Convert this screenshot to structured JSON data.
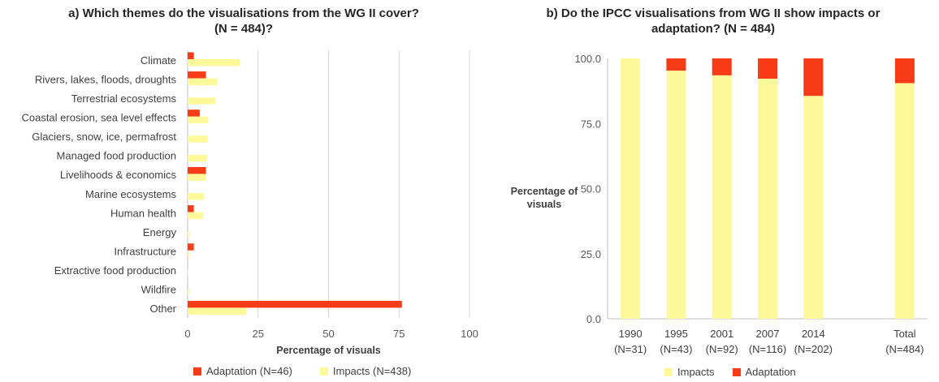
{
  "colors": {
    "adaptation": "#f73b16",
    "impacts": "#fdf99a",
    "grid": "#d9d9d9",
    "axis": "#bfbfbf"
  },
  "chart_data": [
    {
      "type": "bar",
      "orientation": "horizontal",
      "title_line1": "a) Which themes do the visualisations from the WG II cover?",
      "title_line2": "(N = 484)?",
      "xlabel": "Percentage of visuals",
      "ylabel": "",
      "xlim": [
        0,
        100
      ],
      "xticks": [
        "0",
        "25",
        "50",
        "75",
        "100"
      ],
      "grid": true,
      "legend_position": "bottom",
      "categories": [
        "Climate",
        "Rivers, lakes, floods, droughts",
        "Terrestrial ecosystems",
        "Coastal erosion, sea level effects",
        "Glaciers, snow, ice, permafrost",
        "Managed food production",
        "Livelihoods & economics",
        "Marine ecosystems",
        "Human health",
        "Energy",
        "Infrastructure",
        "Extractive food production",
        "Wildfire",
        "Other"
      ],
      "series": [
        {
          "name": "Adaptation (N=46)",
          "values": [
            2.2,
            6.5,
            0,
            4.3,
            0,
            0,
            6.5,
            0,
            2.2,
            0,
            2.2,
            0,
            0,
            76
          ]
        },
        {
          "name": "Impacts (N=438)",
          "values": [
            18.5,
            10.5,
            9.8,
            7.3,
            7.1,
            6.8,
            6.6,
            5.7,
            5.5,
            0.5,
            0.5,
            0.2,
            0.5,
            20.8
          ]
        }
      ]
    },
    {
      "type": "bar",
      "stacked": true,
      "title_line1": "b) Do the IPCC visualisations from WG II show impacts or",
      "title_line2": "adaptation? (N = 484)",
      "ylabel_line1": "Percentage of",
      "ylabel_line2": "visuals",
      "xlabel": "",
      "ylim": [
        0,
        100
      ],
      "yticks": [
        "0.0",
        "25.0",
        "50.0",
        "75.0",
        "100.0"
      ],
      "grid": false,
      "legend_position": "bottom",
      "categories": [
        {
          "year": "1990",
          "n": "(N=31)"
        },
        {
          "year": "1995",
          "n": "(N=43)"
        },
        {
          "year": "2001",
          "n": "(N=92)"
        },
        {
          "year": "2007",
          "n": "(N=116)"
        },
        {
          "year": "2014",
          "n": "(N=202)"
        },
        {
          "year": "",
          "n": ""
        },
        {
          "year": "Total",
          "n": "(N=484)"
        }
      ],
      "series": [
        {
          "name": "Impacts",
          "values": [
            100,
            95.3,
            93.5,
            92.2,
            85.6,
            null,
            90.5
          ]
        },
        {
          "name": "Adaptation",
          "values": [
            0,
            4.7,
            6.5,
            7.8,
            14.4,
            null,
            9.5
          ]
        }
      ]
    }
  ]
}
